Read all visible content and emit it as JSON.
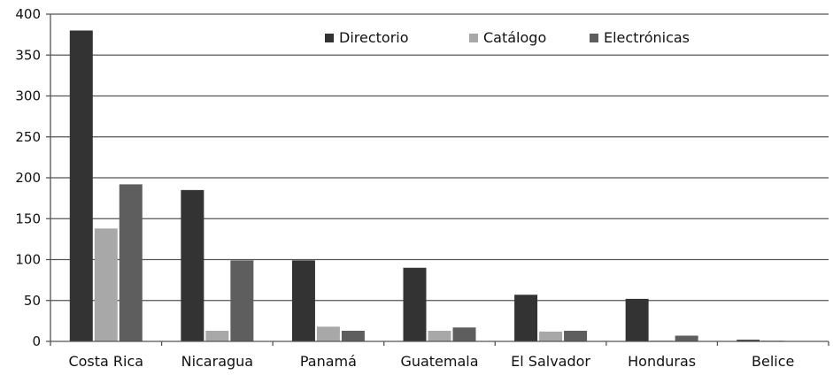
{
  "chart_data": {
    "type": "bar",
    "title": "",
    "xlabel": "",
    "ylabel": "",
    "categories": [
      "Costa Rica",
      "Nicaragua",
      "Panamá",
      "Guatemala",
      "El Salvador",
      "Honduras",
      "Belice"
    ],
    "series": [
      {
        "name": "Directorio",
        "color": "#333333",
        "values": [
          380,
          185,
          99,
          90,
          57,
          52,
          2
        ]
      },
      {
        "name": "Catálogo",
        "color": "#a8a8a8",
        "values": [
          138,
          13,
          18,
          13,
          12,
          1,
          1
        ]
      },
      {
        "name": "Electrónicas",
        "color": "#5e5e5e",
        "values": [
          192,
          99,
          13,
          17,
          13,
          7,
          0
        ]
      }
    ],
    "ylim": [
      0,
      400
    ],
    "yticks": [
      0,
      50,
      100,
      150,
      200,
      250,
      300,
      350,
      400
    ],
    "grid": true,
    "legend_position": "top-right"
  }
}
